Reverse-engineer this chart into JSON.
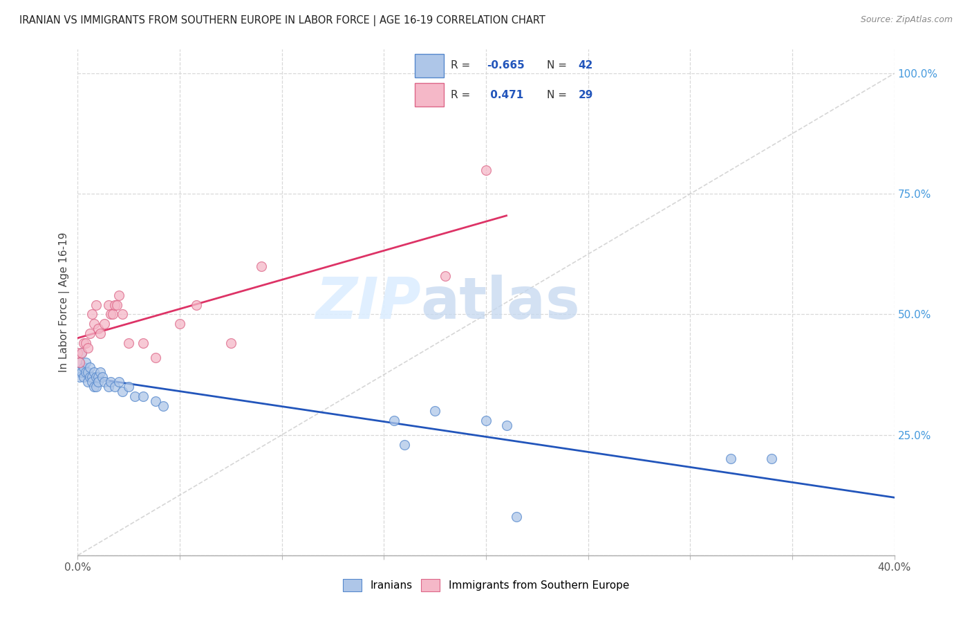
{
  "title": "IRANIAN VS IMMIGRANTS FROM SOUTHERN EUROPE IN LABOR FORCE | AGE 16-19 CORRELATION CHART",
  "source": "Source: ZipAtlas.com",
  "ylabel": "In Labor Force | Age 16-19",
  "xlim": [
    0.0,
    0.4
  ],
  "ylim": [
    0.0,
    1.05
  ],
  "xtick_positions": [
    0.0,
    0.05,
    0.1,
    0.15,
    0.2,
    0.25,
    0.3,
    0.35,
    0.4
  ],
  "xticklabels": [
    "0.0%",
    "",
    "",
    "",
    "",
    "",
    "",
    "",
    "40.0%"
  ],
  "ytick_positions": [
    0.0,
    0.25,
    0.5,
    0.75,
    1.0
  ],
  "ytick_labels": [
    "",
    "25.0%",
    "50.0%",
    "75.0%",
    "100.0%"
  ],
  "blue_fill": "#aec6e8",
  "blue_edge": "#5588cc",
  "pink_fill": "#f5b8c8",
  "pink_edge": "#dd6688",
  "blue_line": "#2255bb",
  "pink_line": "#dd3366",
  "diag_color": "#cccccc",
  "grid_color": "#d8d8d8",
  "legend_r1": "-0.665",
  "legend_n1": "42",
  "legend_r2": "0.471",
  "legend_n2": "29",
  "iranians_x": [
    0.0,
    0.001,
    0.001,
    0.002,
    0.002,
    0.003,
    0.003,
    0.004,
    0.004,
    0.005,
    0.005,
    0.006,
    0.006,
    0.007,
    0.007,
    0.008,
    0.008,
    0.009,
    0.009,
    0.01,
    0.01,
    0.011,
    0.012,
    0.013,
    0.015,
    0.016,
    0.018,
    0.02,
    0.022,
    0.025,
    0.028,
    0.032,
    0.038,
    0.042,
    0.155,
    0.16,
    0.175,
    0.2,
    0.21,
    0.215,
    0.32,
    0.34
  ],
  "iranians_y": [
    0.38,
    0.4,
    0.37,
    0.42,
    0.38,
    0.37,
    0.39,
    0.38,
    0.4,
    0.38,
    0.36,
    0.37,
    0.39,
    0.37,
    0.36,
    0.35,
    0.38,
    0.37,
    0.35,
    0.37,
    0.36,
    0.38,
    0.37,
    0.36,
    0.35,
    0.36,
    0.35,
    0.36,
    0.34,
    0.35,
    0.33,
    0.33,
    0.32,
    0.31,
    0.28,
    0.23,
    0.3,
    0.28,
    0.27,
    0.08,
    0.2,
    0.2
  ],
  "southern_eu_x": [
    0.0,
    0.001,
    0.002,
    0.003,
    0.004,
    0.005,
    0.006,
    0.007,
    0.008,
    0.009,
    0.01,
    0.011,
    0.013,
    0.015,
    0.016,
    0.017,
    0.018,
    0.019,
    0.02,
    0.022,
    0.025,
    0.032,
    0.038,
    0.05,
    0.058,
    0.075,
    0.09,
    0.18,
    0.2
  ],
  "southern_eu_y": [
    0.42,
    0.4,
    0.42,
    0.44,
    0.44,
    0.43,
    0.46,
    0.5,
    0.48,
    0.52,
    0.47,
    0.46,
    0.48,
    0.52,
    0.5,
    0.5,
    0.52,
    0.52,
    0.54,
    0.5,
    0.44,
    0.44,
    0.41,
    0.48,
    0.52,
    0.44,
    0.6,
    0.58,
    0.8
  ],
  "marker_size": 100,
  "trend_lw": 2.0
}
